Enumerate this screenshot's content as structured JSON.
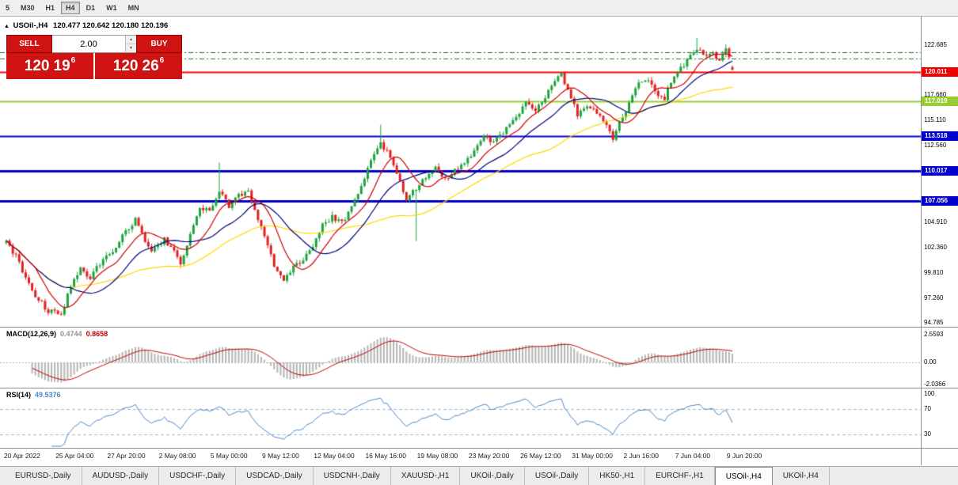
{
  "ui_colors": {
    "trade_red": "#cf1212"
  },
  "icons": {
    "symbol_marker": "▲",
    "spin_up": "▲",
    "spin_down": "▼"
  },
  "toolbar": {
    "timeframes": [
      "5",
      "M30",
      "H1",
      "H4",
      "D1",
      "W1",
      "MN"
    ],
    "active": "H4"
  },
  "chart": {
    "symbol": "USOil-,H4",
    "ohlc": "120.477 120.642 120.180 120.196",
    "trade_panel": {
      "sell_label": "SELL",
      "buy_label": "BUY",
      "volume": "2.00",
      "bid": {
        "main": "120",
        "pips": "19",
        "sup": "6"
      },
      "ask": {
        "main": "120",
        "pips": "26",
        "sup": "6"
      }
    },
    "axis_labels": [
      {
        "text": "122.685",
        "price": 122.685
      },
      {
        "text": "117.660",
        "price": 117.66
      },
      {
        "text": "115.110",
        "price": 115.11
      },
      {
        "text": "112.560",
        "price": 112.56
      },
      {
        "text": "104.910",
        "price": 104.91
      },
      {
        "text": "102.360",
        "price": 102.36
      },
      {
        "text": "99.810",
        "price": 99.81
      },
      {
        "text": "97.260",
        "price": 97.26
      },
      {
        "text": "94.785",
        "price": 94.785
      }
    ],
    "price_tags": [
      {
        "text": "120.011",
        "price": 120.011,
        "color": "#f00000"
      },
      {
        "text": "117.019",
        "price": 117.019,
        "color": "#9acd32"
      },
      {
        "text": "113.518",
        "price": 113.518,
        "color": "#0000cc"
      },
      {
        "text": "110.017",
        "price": 110.017,
        "color": "#0000cc"
      },
      {
        "text": "107.056",
        "price": 107.056,
        "color": "#0000cc"
      }
    ]
  },
  "macd": {
    "label": "MACD(12,26,9)",
    "value_main": "0.4744",
    "value_signal": "0.8658",
    "axis": [
      {
        "text": "2.5593",
        "value": 2.5593
      },
      {
        "text": "0.00",
        "value": 0
      },
      {
        "text": "-2.0366",
        "value": -2.0366
      }
    ]
  },
  "rsi": {
    "label": "RSI(14)",
    "value": "49.5376",
    "axis": [
      {
        "text": "100",
        "value": 100
      },
      {
        "text": "70",
        "value": 70
      },
      {
        "text": "30",
        "value": 30
      }
    ],
    "levels": [
      70,
      30
    ]
  },
  "time_axis": {
    "labels": [
      "20 Apr 2022",
      "25 Apr 04:00",
      "27 Apr 20:00",
      "2 May 08:00",
      "5 May 00:00",
      "9 May 12:00",
      "12 May 04:00",
      "16 May 16:00",
      "19 May 08:00",
      "23 May 20:00",
      "26 May 12:00",
      "31 May 00:00",
      "2 Jun 16:00",
      "7 Jun 04:00",
      "9 Jun 20:00"
    ]
  },
  "tabs": {
    "items": [
      "EURUSD-,Daily",
      "AUDUSD-,Daily",
      "USDCHF-,Daily",
      "USDCAD-,Daily",
      "USDCNH-,Daily",
      "XAUUSD-,H1",
      "UKOil-,Daily",
      "USOil-,Daily",
      "HK50-,H1",
      "EURCHF-,H1",
      "USOil-,H4",
      "UKOil-,H4"
    ],
    "active_index": 10
  },
  "chart_data": {
    "type": "candlestick",
    "symbol": "USOil-,H4",
    "timeframe": "H4",
    "candle_count": 226,
    "y_axis_range": [
      94.785,
      122.685
    ],
    "last_candle": {
      "open": 120.477,
      "high": 120.642,
      "low": 120.18,
      "close": 120.196
    },
    "close_waypoints": [
      [
        0,
        102.8
      ],
      [
        3,
        101.5
      ],
      [
        6,
        99.2
      ],
      [
        9,
        97.5
      ],
      [
        13,
        96.0
      ],
      [
        17,
        95.6
      ],
      [
        20,
        98.5
      ],
      [
        23,
        100.2
      ],
      [
        26,
        99.3
      ],
      [
        29,
        100.8
      ],
      [
        33,
        102.0
      ],
      [
        36,
        103.5
      ],
      [
        40,
        105.2
      ],
      [
        43,
        103.0
      ],
      [
        45,
        101.8
      ],
      [
        49,
        103.2
      ],
      [
        52,
        102.0
      ],
      [
        54,
        100.8
      ],
      [
        57,
        103.5
      ],
      [
        60,
        106.3
      ],
      [
        63,
        106.0
      ],
      [
        66,
        108.2
      ],
      [
        69,
        106.5
      ],
      [
        72,
        107.5
      ],
      [
        75,
        108.3
      ],
      [
        77,
        106.0
      ],
      [
        80,
        103.5
      ],
      [
        83,
        100.5
      ],
      [
        86,
        98.9
      ],
      [
        89,
        100.3
      ],
      [
        92,
        101.2
      ],
      [
        95,
        102.5
      ],
      [
        98,
        104.5
      ],
      [
        101,
        105.5
      ],
      [
        104,
        104.8
      ],
      [
        107,
        106.5
      ],
      [
        110,
        108.5
      ],
      [
        113,
        111.0
      ],
      [
        116,
        112.8
      ],
      [
        119,
        111.5
      ],
      [
        122,
        109.0
      ],
      [
        124,
        107.2
      ],
      [
        127,
        108.2
      ],
      [
        130,
        109.5
      ],
      [
        133,
        110.3
      ],
      [
        136,
        109.2
      ],
      [
        139,
        110.0
      ],
      [
        142,
        110.8
      ],
      [
        145,
        112.0
      ],
      [
        148,
        113.5
      ],
      [
        151,
        112.8
      ],
      [
        154,
        114.0
      ],
      [
        158,
        115.5
      ],
      [
        161,
        116.8
      ],
      [
        164,
        116.0
      ],
      [
        167,
        117.5
      ],
      [
        170,
        119.0
      ],
      [
        172,
        119.7
      ],
      [
        175,
        117.5
      ],
      [
        177,
        115.6
      ],
      [
        180,
        116.5
      ],
      [
        183,
        116.0
      ],
      [
        186,
        114.5
      ],
      [
        188,
        113.4
      ],
      [
        191,
        115.5
      ],
      [
        194,
        117.5
      ],
      [
        196,
        118.8
      ],
      [
        199,
        119.3
      ],
      [
        201,
        118.0
      ],
      [
        204,
        117.3
      ],
      [
        206,
        119.0
      ],
      [
        209,
        120.3
      ],
      [
        211,
        121.2
      ],
      [
        214,
        122.4
      ],
      [
        216,
        121.6
      ],
      [
        218,
        122.0
      ],
      [
        221,
        121.2
      ],
      [
        223,
        122.3
      ],
      [
        225,
        120.2
      ]
    ],
    "wick_overrides": [
      {
        "index": 66,
        "high": 110.9
      },
      {
        "index": 116,
        "high": 114.7
      },
      {
        "index": 127,
        "low": 103.0
      },
      {
        "index": 214,
        "high": 123.4
      },
      {
        "index": 223,
        "high": 122.75
      }
    ],
    "horizontal_lines": [
      {
        "price": 121.95,
        "color": "#267326",
        "style": "dashdot",
        "width": 1
      },
      {
        "price": 121.35,
        "color": "#267326",
        "style": "dashdot",
        "width": 1
      },
      {
        "price": 120.011,
        "color": "#ff0000",
        "style": "solid",
        "width": 2
      },
      {
        "price": 117.019,
        "color": "#9acd32",
        "style": "solid",
        "width": 2
      },
      {
        "price": 113.518,
        "color": "#0000cc",
        "style": "solid",
        "width": 2
      },
      {
        "price": 110.017,
        "color": "#0000cc",
        "style": "solid",
        "width": 3
      },
      {
        "price": 107.056,
        "color": "#0000cc",
        "style": "solid",
        "width": 3
      }
    ],
    "moving_averages": [
      {
        "period": 10,
        "color": "#cc0000"
      },
      {
        "period": 21,
        "color": "#000080"
      },
      {
        "period": 50,
        "color": "#ffd700"
      }
    ],
    "indicators": [
      {
        "type": "macd",
        "params": [
          12,
          26,
          9
        ],
        "values": [
          0.4744,
          0.8658
        ]
      },
      {
        "type": "rsi",
        "params": [
          14
        ],
        "value": 49.5376
      }
    ],
    "colors": {
      "up": "#1fa23d",
      "down": "#e02020",
      "macd_histogram": "#b4b4b4",
      "macd_signal": "#c00000",
      "rsi_line": "#4a86c8",
      "rsi_levels": "#9db9d0"
    }
  }
}
